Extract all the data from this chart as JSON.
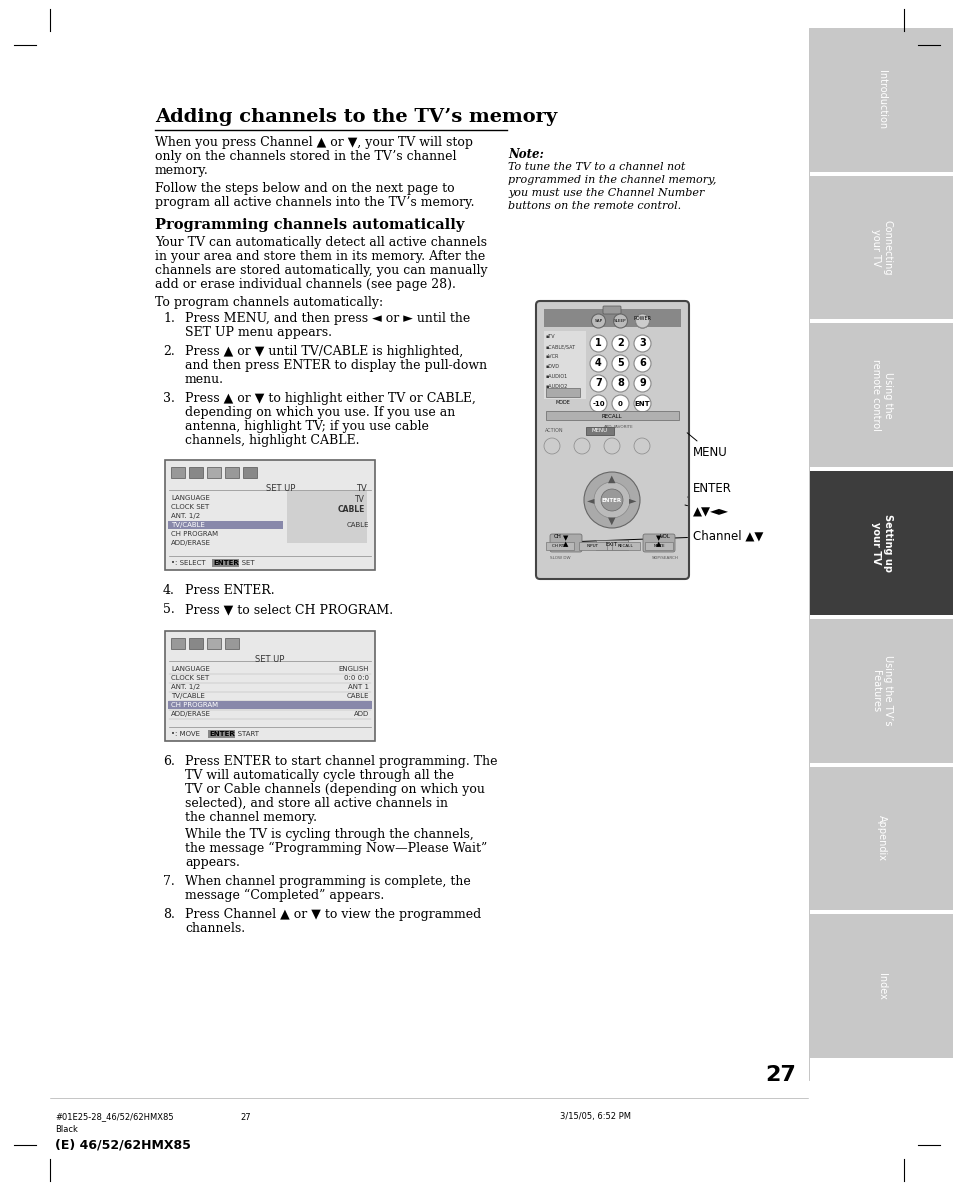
{
  "page_bg": "#ffffff",
  "sidebar_bg": "#c8c8c8",
  "sidebar_active_bg": "#3d3d3d",
  "sidebar_text_color": "#ffffff",
  "sidebar_tabs": [
    {
      "label": "Introduction",
      "active": false
    },
    {
      "label": "Connecting\nyour TV",
      "active": false
    },
    {
      "label": "Using the\nremote control",
      "active": false
    },
    {
      "label": "Setting up\nyour TV",
      "active": true
    },
    {
      "label": "Using the TV’s\nFeatures",
      "active": false
    },
    {
      "label": "Appendix",
      "active": false
    },
    {
      "label": "Index",
      "active": false
    }
  ],
  "title": "Adding channels to the TV’s memory",
  "section_heading": "Programming channels automatically",
  "para1": "When you press Channel ▲ or ▼, your TV will stop only on the channels stored in the TV’s channel memory.",
  "para2": "Follow the steps below and on the next page to program all active channels into the TV’s memory.",
  "section_body": "Your TV can automatically detect all active channels in your area and store them in its memory. After the channels are stored automatically, you can manually add or erase individual channels (see page 28).",
  "to_program": "To program channels automatically:",
  "step1": "Press MENU, and then press ◄ or ► until the SET UP menu appears.",
  "step2": "Press ▲ or ▼ until TV/CABLE is highlighted, and then press ENTER to display the pull-down menu.",
  "step3": "Press ▲ or ▼ to highlight either TV or CABLE, depending on which you use. If you use an antenna, highlight TV; if you use cable channels, highlight CABLE.",
  "step4": "Press ENTER.",
  "step5": "Press ▼ to select CH PROGRAM.",
  "step6a": "Press ENTER to start channel programming. The TV will automatically cycle through all the TV or Cable channels (depending on which you selected), and store all active channels in the channel memory.",
  "step6b": "While the TV is cycling through the channels, the message “Programming Now—Please Wait” appears.",
  "step7": "When channel programming is complete, the message “Completed” appears.",
  "step8": "Press Channel ▲ or ▼ to view the programmed channels.",
  "note_title": "Note:",
  "note_text": "To tune the TV to a channel not programmed in the channel memory, you must use the Channel Number buttons on the remote control.",
  "menu1_items": [
    "LANGUAGE",
    "CLOCK SET",
    "ANT. 1/2",
    "TV/CABLE",
    "CH PROGRAM",
    "ADD/ERASE"
  ],
  "menu1_vals": [
    "",
    "",
    "",
    "CABLE",
    "",
    ""
  ],
  "menu1_highlight": "TV/CABLE",
  "menu1_right_label": "TV",
  "menu1_right_val": "CABLE",
  "menu1_footer": "•: SELECT  ENTER: SET",
  "menu2_items": [
    "LANGUAGE",
    "CLOCK SET",
    "ANT. 1/2",
    "TV/CABLE",
    "CH PROGRAM",
    "ADD/ERASE"
  ],
  "menu2_vals": [
    "ENGLISH",
    "0:0 0:0",
    "ANT 1",
    "CABLE",
    "",
    "ADD"
  ],
  "menu2_highlight": "CH PROGRAM",
  "menu2_footer": "•: MOVE  ENTER: START",
  "page_number": "27",
  "footer_left": "#01E25-28_46/52/62HMX85",
  "footer_page": "27",
  "footer_color": "Black",
  "footer_model": "(E) 46/52/62HMX85",
  "footer_right": "3/15/05, 6:52 PM"
}
